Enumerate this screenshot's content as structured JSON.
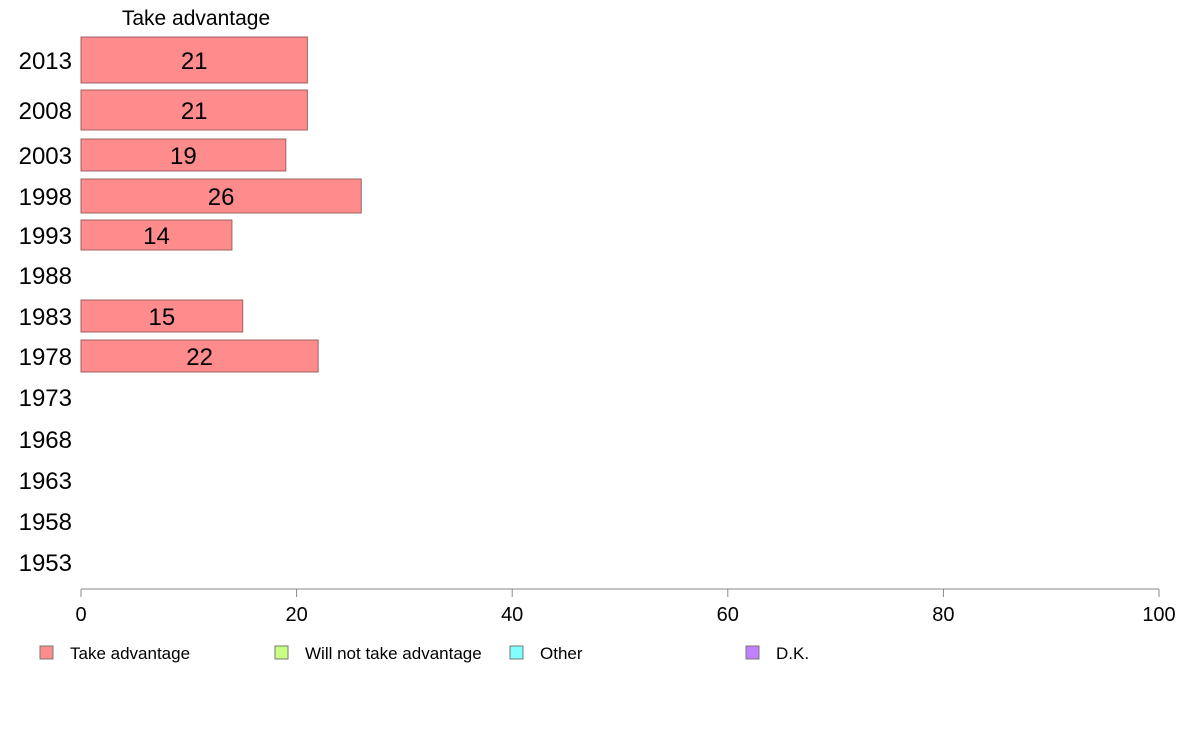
{
  "chart_data": {
    "type": "bar",
    "orientation": "horizontal",
    "title": "Take advantage",
    "categories": [
      "2013",
      "2008",
      "2003",
      "1998",
      "1993",
      "1988",
      "1983",
      "1978",
      "1973",
      "1968",
      "1963",
      "1958",
      "1953"
    ],
    "series": [
      {
        "name": "Take advantage",
        "values": [
          21,
          21,
          19,
          26,
          14,
          null,
          15,
          22,
          null,
          null,
          null,
          null,
          null
        ],
        "color": "#ff8c8c"
      }
    ],
    "xlim": [
      0,
      100
    ],
    "xticks": [
      0,
      20,
      40,
      60,
      80,
      100
    ],
    "legend": [
      {
        "label": "Take advantage",
        "color": "#ff8c8c"
      },
      {
        "label": "Will not take advantage",
        "color": "#c8ff80"
      },
      {
        "label": "Other",
        "color": "#80ffff"
      },
      {
        "label": "D.K.",
        "color": "#c080ff"
      }
    ],
    "legend_position": "bottom",
    "grid": false
  }
}
